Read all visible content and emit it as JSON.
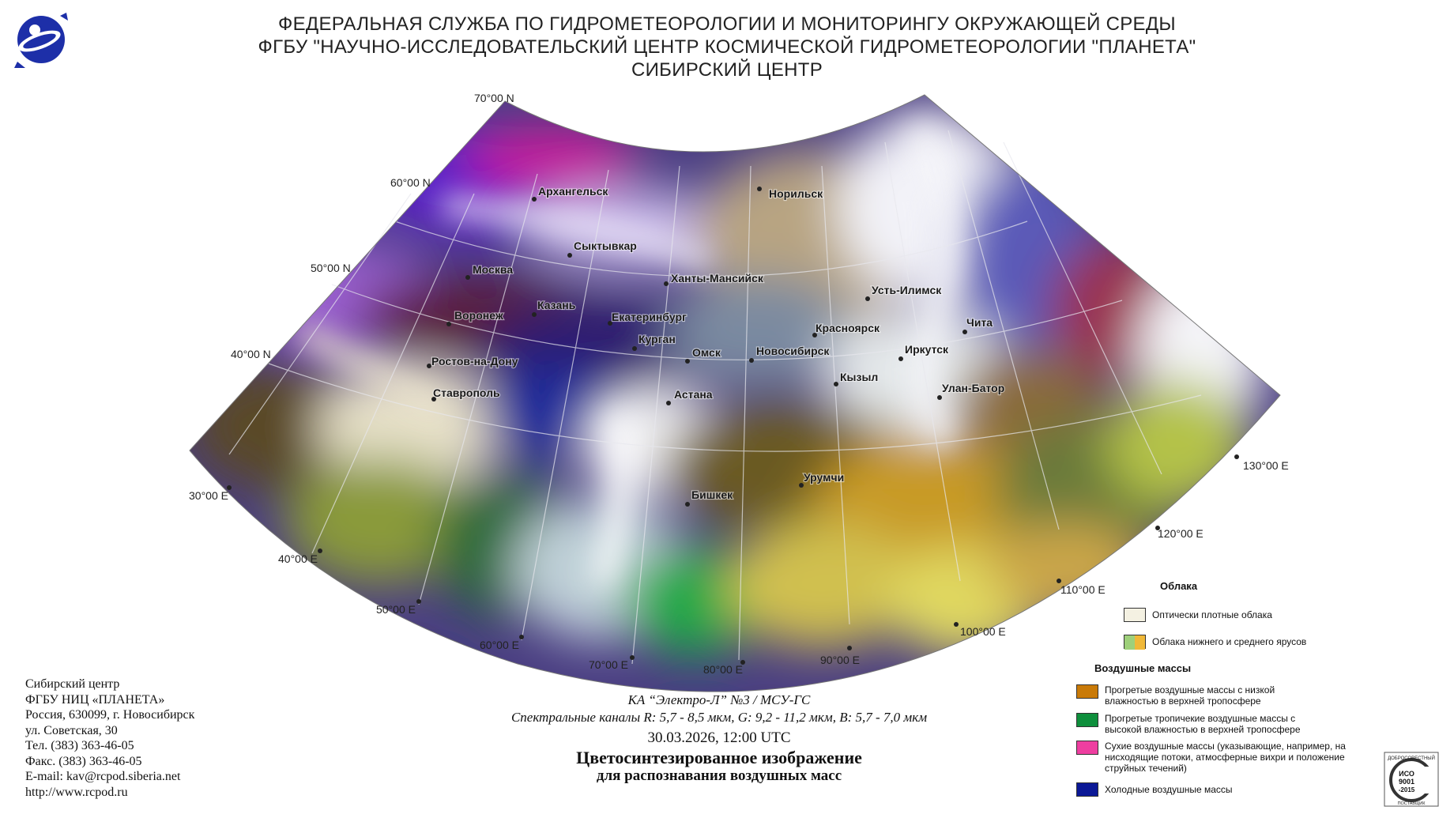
{
  "header": {
    "line1": "ФЕДЕРАЛЬНАЯ СЛУЖБА ПО ГИДРОМЕТЕОРОЛОГИИ И МОНИТОРИНГУ ОКРУЖАЮЩЕЙ СРЕДЫ",
    "line2": "ФГБУ \"НАУЧНО-ИССЛЕДОВАТЕЛЬСКИЙ ЦЕНТР КОСМИЧЕСКОЙ ГИДРОМЕТЕОРОЛОГИИ \"ПЛАНЕТА\"",
    "line3": "СИБИРСКИЙ ЦЕНТР"
  },
  "grid_labels": {
    "lat70": "70°00 N",
    "lat60": "60°00 N",
    "lat50": "50°00 N",
    "lat40": "40°00 N",
    "lon30": "30°00 E",
    "lon40": "40°00 E",
    "lon50": "50°00 E",
    "lon60": "60°00 E",
    "lon70": "70°00 E",
    "lon80": "80°00 E",
    "lon90": "90°00 E",
    "lon100": "100°00 E",
    "lon110": "110°00 E",
    "lon120": "120°00 E",
    "lon130": "130°00 E"
  },
  "cities": {
    "arkhangelsk": "Архангельск",
    "norilsk": "Норильск",
    "syktyvkar": "Сыктывкар",
    "moscow": "Москва",
    "khanty": "Ханты-Мансийск",
    "ust_ilimsk": "Усть-Илимск",
    "kazan": "Казань",
    "voronezh": "Воронеж",
    "yekaterinburg": "Екатеринбург",
    "krasnoyarsk": "Красноярск",
    "chita": "Чита",
    "kurgan": "Курган",
    "omsk": "Омск",
    "novosibirsk": "Новосибирск",
    "irkutsk": "Иркутск",
    "rostov": "Ростов-на-Дону",
    "kyzyl": "Кызыл",
    "astana": "Астана",
    "ulan_bator": "Улан-Батор",
    "stavropol": "Ставрополь",
    "urumqi": "Урумчи",
    "bishkek": "Бишкек"
  },
  "contact": {
    "line1": "Сибирский центр",
    "line2": "ФГБУ НИЦ «ПЛАНЕТА»",
    "line3": "Россия, 630099, г. Новосибирск",
    "line4": "ул. Советская, 30",
    "line5": "Тел. (383) 363-46-05",
    "line6": "Факс. (383) 363-46-05",
    "line7": "E-mail: kav@rcpod.siberia.net",
    "line8": "http://www.rcpod.ru"
  },
  "caption": {
    "satellite": "КА “Электро-Л” №3 / МСУ-ГС",
    "channels": "Спектральные каналы R: 5,7 - 8,5 мкм, G: 9,2 - 11,2 мкм, B: 5,7 - 7,0 мкм",
    "datetime": "30.03.2026, 12:00 UTC",
    "title": "Цветосинтезированное изображение",
    "subtitle": "для распознавания воздушных масс"
  },
  "legend": {
    "clouds_heading": "Облака",
    "clouds_items": [
      {
        "label": "Оптически плотные облака",
        "colors": [
          "#f4f1e2"
        ]
      },
      {
        "label": "Облака нижнего и среднего ярусов",
        "colors": [
          "#9ed07a",
          "#f0b838"
        ]
      }
    ],
    "airmass_heading": "Воздушные массы",
    "airmass_items": [
      {
        "label": "Прогретые воздушные массы с низкой влажностью в верхней тропосфере",
        "colors": [
          "#c97a08"
        ]
      },
      {
        "label": "Прогретые тропичекие воздушные массы с высокой влажностью в верхней тропосфере",
        "colors": [
          "#0e8f3c"
        ]
      },
      {
        "label": "Сухие воздушные массы (указывающие, например, на нисходящие потоки, атмосферные вихри и положение струйных течений)",
        "colors": [
          "#ee3ea0"
        ]
      },
      {
        "label": "Холодные воздушные массы",
        "colors": [
          "#0b1896"
        ]
      }
    ]
  },
  "iso_badge": {
    "top": "ДОБРОСОВЕСТНЫЙ",
    "iso": "ИСО",
    "num": "9001",
    "year": "-2015",
    "bottom": "ПОСТАВЩИК"
  }
}
